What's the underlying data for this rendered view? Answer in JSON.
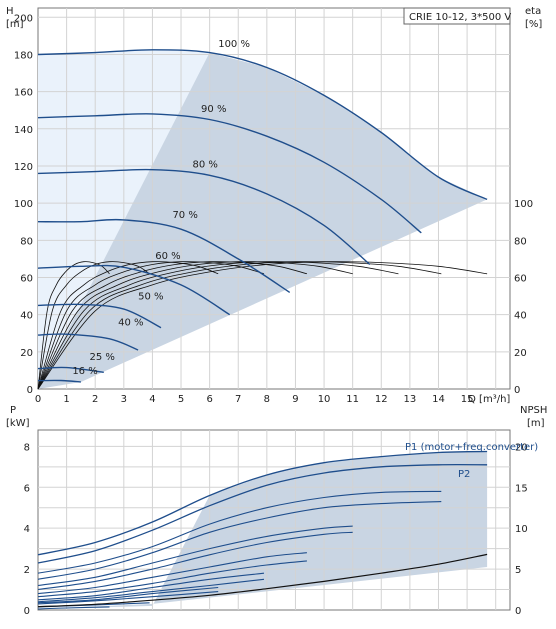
{
  "chart_data": [
    {
      "type": "line",
      "legend_box": "CRIE 10-12, 3*500 V",
      "x_axis": {
        "label": "Q [m³/h]",
        "range": [
          0,
          16.5
        ],
        "ticks": [
          "0",
          "1",
          "2",
          "3",
          "4",
          "5",
          "6",
          "7",
          "8",
          "9",
          "10",
          "11",
          "12",
          "13",
          "14",
          "15"
        ]
      },
      "y_left": {
        "label": "H",
        "unit": "[m]",
        "range": [
          0,
          205
        ],
        "ticks": [
          "0",
          "20",
          "40",
          "60",
          "80",
          "100",
          "120",
          "140",
          "160",
          "180",
          "200"
        ]
      },
      "y_right": {
        "label": "eta",
        "unit": "[%]",
        "ticks": [
          "0",
          "20",
          "40",
          "60",
          "80",
          "100"
        ]
      },
      "grid": true,
      "speed_curves": [
        {
          "label": "100 %",
          "x": [
            0,
            2,
            4,
            6,
            8,
            10,
            12,
            14,
            15.7
          ],
          "y": [
            180,
            181,
            182.5,
            181,
            173,
            158,
            138,
            114,
            102
          ]
        },
        {
          "label": "90 %",
          "x": [
            0,
            2,
            4,
            6,
            8,
            10,
            12,
            13.4
          ],
          "y": [
            146,
            147,
            148,
            145,
            136,
            122,
            102,
            84
          ]
        },
        {
          "label": "80 %",
          "x": [
            0,
            2,
            4,
            6,
            8,
            10,
            11.6
          ],
          "y": [
            116,
            117,
            118,
            115,
            105,
            88,
            67
          ]
        },
        {
          "label": "70 %",
          "x": [
            0,
            1.5,
            3,
            5,
            7,
            8.8
          ],
          "y": [
            90,
            90,
            91,
            86,
            70,
            52
          ]
        },
        {
          "label": "60 %",
          "x": [
            0,
            1.5,
            3,
            5,
            6.7
          ],
          "y": [
            65,
            66,
            65.5,
            56,
            40
          ]
        },
        {
          "label": "50 %",
          "x": [
            0,
            1.5,
            3,
            4.3
          ],
          "y": [
            45,
            45.5,
            43,
            33
          ]
        },
        {
          "label": "40 %",
          "x": [
            0,
            1,
            2.5,
            3.5
          ],
          "y": [
            29,
            29.5,
            27,
            21
          ]
        },
        {
          "label": "25 %",
          "x": [
            0,
            1,
            2.3
          ],
          "y": [
            11,
            11.5,
            9
          ]
        },
        {
          "label": "16 %",
          "x": [
            0,
            0.8,
            1.5
          ],
          "y": [
            4.5,
            4.6,
            3.8
          ]
        }
      ],
      "efficiency_curves": [
        {
          "x": [
            0,
            2,
            4,
            6,
            8,
            10,
            12,
            14,
            15.7
          ],
          "y": [
            0,
            42,
            56,
            63,
            67,
            68.5,
            68,
            66,
            62
          ]
        },
        {
          "x": [
            0,
            1.8,
            3.6,
            5.4,
            7.2,
            9,
            10.8,
            12.6,
            14.1
          ],
          "y": [
            0,
            42,
            56,
            63,
            67,
            68.5,
            68,
            66,
            62
          ]
        },
        {
          "x": [
            0,
            1.6,
            3.2,
            4.8,
            6.4,
            8,
            9.6,
            11.2,
            12.6
          ],
          "y": [
            0,
            42,
            56,
            63,
            67,
            68.5,
            68,
            66,
            62
          ]
        },
        {
          "x": [
            0,
            1.4,
            2.8,
            4.2,
            5.6,
            7,
            8.4,
            9.8,
            11
          ],
          "y": [
            0,
            42,
            56,
            63,
            67,
            68.5,
            68,
            66,
            62
          ]
        },
        {
          "x": [
            0,
            1.2,
            2.4,
            3.6,
            4.8,
            6,
            7.2,
            8.4,
            9.4
          ],
          "y": [
            0,
            42,
            56,
            63,
            67,
            68.5,
            68,
            66,
            62
          ]
        },
        {
          "x": [
            0,
            1,
            2,
            3,
            4,
            5,
            6,
            7,
            7.9
          ],
          "y": [
            0,
            42,
            56,
            63,
            67,
            68.5,
            68,
            66,
            62
          ]
        },
        {
          "x": [
            0,
            0.8,
            1.6,
            2.4,
            3.2,
            4,
            4.8,
            5.6,
            6.3
          ],
          "y": [
            0,
            42,
            56,
            63,
            67,
            68.5,
            68,
            66,
            62
          ]
        },
        {
          "x": [
            0,
            0.5,
            1,
            1.5,
            2,
            2.5,
            3,
            3.5,
            3.9
          ],
          "y": [
            0,
            42,
            56,
            63,
            67,
            68.5,
            68,
            66,
            62
          ]
        },
        {
          "x": [
            0,
            0.32,
            0.64,
            0.96,
            1.28,
            1.6,
            1.92,
            2.24,
            2.5
          ],
          "y": [
            0,
            42,
            56,
            63,
            67,
            68.5,
            68,
            66,
            62
          ]
        }
      ],
      "operating_area_color": "#c9d5e3",
      "low_load_area_color": "#eaf2fb"
    },
    {
      "type": "line",
      "x_axis": {
        "range": [
          0,
          16.5
        ]
      },
      "y_left": {
        "label": "P",
        "unit": "[kW]",
        "range": [
          0,
          8.8
        ],
        "ticks": [
          "0",
          "2",
          "4",
          "6",
          "8"
        ]
      },
      "y_right": {
        "label": "NPSH",
        "unit": "[m]",
        "ticks": [
          "0",
          "5",
          "10",
          "15",
          "20"
        ]
      },
      "grid": true,
      "series_labels": [
        "P1 (motor+freq.converter)",
        "P2"
      ],
      "power_curves": [
        {
          "name": "P1 (motor+freq.converter)",
          "x": [
            0,
            2,
            4,
            6,
            8,
            10,
            12,
            14,
            15.7
          ],
          "y": [
            2.7,
            3.3,
            4.3,
            5.6,
            6.6,
            7.2,
            7.5,
            7.7,
            7.75
          ]
        },
        {
          "name": "P2",
          "x": [
            0,
            2,
            4,
            6,
            8,
            10,
            12,
            14,
            15.7
          ],
          "y": [
            2.3,
            2.9,
            3.9,
            5.1,
            6.1,
            6.7,
            7.0,
            7.1,
            7.1
          ]
        },
        {
          "x": [
            0,
            2,
            4,
            6,
            8,
            10,
            12,
            14.1
          ],
          "y": [
            1.8,
            2.3,
            3.1,
            4.2,
            5.0,
            5.5,
            5.75,
            5.8
          ]
        },
        {
          "x": [
            0,
            2,
            4,
            6,
            8,
            10,
            12,
            14.1
          ],
          "y": [
            1.5,
            2.0,
            2.8,
            3.8,
            4.5,
            5.0,
            5.2,
            5.3
          ]
        },
        {
          "x": [
            0,
            2,
            4,
            6,
            8,
            10,
            11
          ],
          "y": [
            1.2,
            1.6,
            2.3,
            3.0,
            3.6,
            4.0,
            4.1
          ]
        },
        {
          "x": [
            0,
            2,
            4,
            6,
            8,
            10,
            11
          ],
          "y": [
            1.0,
            1.4,
            2.0,
            2.7,
            3.3,
            3.7,
            3.8
          ]
        },
        {
          "x": [
            0,
            2,
            4,
            6,
            8,
            9.4
          ],
          "y": [
            0.8,
            1.1,
            1.6,
            2.1,
            2.6,
            2.8
          ]
        },
        {
          "x": [
            0,
            2,
            4,
            6,
            8,
            9.4
          ],
          "y": [
            0.65,
            0.9,
            1.3,
            1.8,
            2.2,
            2.4
          ]
        },
        {
          "x": [
            0,
            2,
            4,
            6,
            7.9
          ],
          "y": [
            0.5,
            0.7,
            1.1,
            1.5,
            1.8
          ]
        },
        {
          "x": [
            0,
            2,
            4,
            6,
            7.9
          ],
          "y": [
            0.4,
            0.6,
            0.9,
            1.2,
            1.5
          ]
        },
        {
          "x": [
            0,
            2,
            4,
            6.3
          ],
          "y": [
            0.35,
            0.5,
            0.8,
            1.1
          ]
        },
        {
          "x": [
            0,
            2,
            4,
            6.3
          ],
          "y": [
            0.3,
            0.45,
            0.65,
            0.9
          ]
        },
        {
          "x": [
            0,
            2,
            3.9
          ],
          "y": [
            0.15,
            0.25,
            0.35
          ]
        },
        {
          "x": [
            0,
            1,
            2.5
          ],
          "y": [
            0.05,
            0.1,
            0.15
          ]
        }
      ],
      "npsh_curve": {
        "x": [
          0,
          2,
          4,
          6,
          8,
          10,
          12,
          14,
          15.7
        ],
        "y": [
          0.4,
          0.7,
          1.2,
          1.8,
          2.6,
          3.5,
          4.5,
          5.6,
          6.8
        ]
      },
      "operating_area_color": "#c9d5e3"
    }
  ]
}
